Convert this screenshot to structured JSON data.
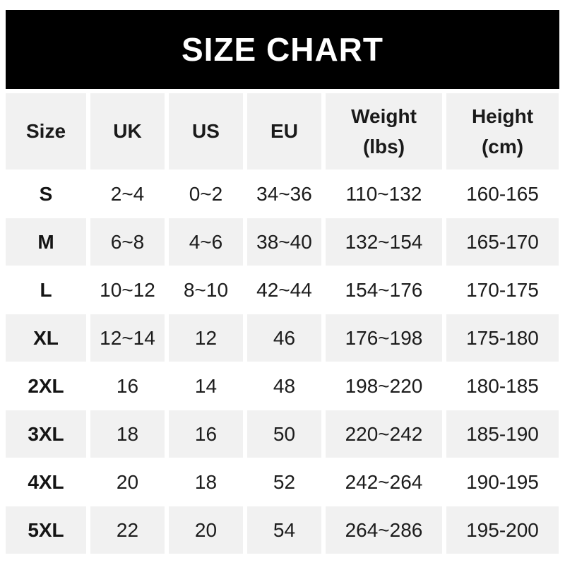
{
  "title": "SIZE CHART",
  "colors": {
    "title_bar_bg": "#000000",
    "title_bar_text": "#ffffff",
    "row_alt_bg": "#f1f1f1",
    "row_bg": "#ffffff",
    "text": "#1c1c1c"
  },
  "chart_data": {
    "type": "table",
    "title": "SIZE CHART",
    "columns": [
      "Size",
      "UK",
      "US",
      "EU",
      "Weight (lbs)",
      "Height (cm)"
    ],
    "rows": [
      [
        "S",
        "2~4",
        "0~2",
        "34~36",
        "110~132",
        "160-165"
      ],
      [
        "M",
        "6~8",
        "4~6",
        "38~40",
        "132~154",
        "165-170"
      ],
      [
        "L",
        "10~12",
        "8~10",
        "42~44",
        "154~176",
        "170-175"
      ],
      [
        "XL",
        "12~14",
        "12",
        "46",
        "176~198",
        "175-180"
      ],
      [
        "2XL",
        "16",
        "14",
        "48",
        "198~220",
        "180-185"
      ],
      [
        "3XL",
        "18",
        "16",
        "50",
        "220~242",
        "185-190"
      ],
      [
        "4XL",
        "20",
        "18",
        "52",
        "242~264",
        "190-195"
      ],
      [
        "5XL",
        "22",
        "20",
        "54",
        "264~286",
        "195-200"
      ]
    ],
    "layout": {
      "alternating_row_shading": true,
      "shaded_rows": [
        "header",
        "M",
        "XL",
        "3XL",
        "5XL"
      ]
    }
  }
}
